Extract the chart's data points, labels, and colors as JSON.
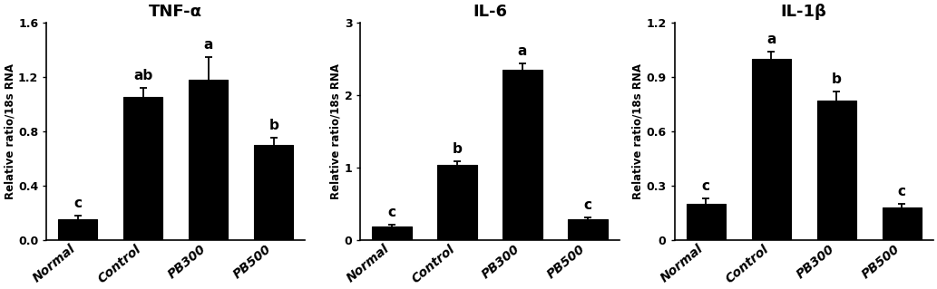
{
  "panels": [
    {
      "title": "TNF-α",
      "categories": [
        "Normal",
        "Control",
        "PB300",
        "PB500"
      ],
      "values": [
        0.15,
        1.05,
        1.18,
        0.7
      ],
      "errors": [
        0.03,
        0.07,
        0.17,
        0.05
      ],
      "letters": [
        "c",
        "ab",
        "a",
        "b"
      ],
      "ylim": [
        0,
        1.6
      ],
      "yticks": [
        0.0,
        0.4,
        0.8,
        1.2,
        1.6
      ],
      "yticklabels": [
        "0.0",
        "0.4",
        "0.8",
        "1.2",
        "1.6"
      ],
      "ylabel": "Relative ratio/18s RNA"
    },
    {
      "title": "IL-6",
      "categories": [
        "Normal",
        "Control",
        "PB300",
        "PB500"
      ],
      "values": [
        0.18,
        1.03,
        2.35,
        0.28
      ],
      "errors": [
        0.03,
        0.06,
        0.09,
        0.03
      ],
      "letters": [
        "c",
        "b",
        "a",
        "c"
      ],
      "ylim": [
        0,
        3
      ],
      "yticks": [
        0,
        1,
        2,
        3
      ],
      "yticklabels": [
        "0",
        "1",
        "2",
        "3"
      ],
      "ylabel": "Relative ratio/18s RNA"
    },
    {
      "title": "IL-1β",
      "categories": [
        "Normal",
        "Control",
        "PB300",
        "PB500"
      ],
      "values": [
        0.2,
        1.0,
        0.77,
        0.18
      ],
      "errors": [
        0.03,
        0.04,
        0.05,
        0.02
      ],
      "letters": [
        "c",
        "a",
        "b",
        "c"
      ],
      "ylim": [
        0,
        1.2
      ],
      "yticks": [
        0.0,
        0.3,
        0.6,
        0.9,
        1.2
      ],
      "yticklabels": [
        "0",
        "0.3",
        "0.6",
        "0.9",
        "1.2"
      ],
      "ylabel": "Relative ratio/18s RNA"
    }
  ],
  "bar_color": "#000000",
  "bar_edgecolor": "#000000",
  "background_color": "#ffffff",
  "error_color": "#000000",
  "letter_fontsize": 11,
  "title_fontsize": 13,
  "ylabel_fontsize": 8.5,
  "tick_fontsize": 9,
  "xtick_fontsize": 10,
  "bar_width": 0.6
}
